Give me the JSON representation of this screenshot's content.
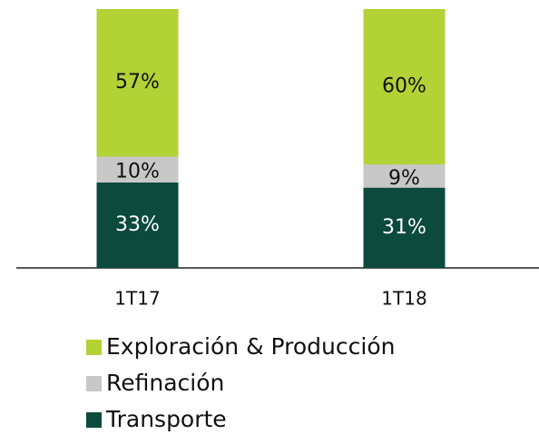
{
  "chart_data": {
    "type": "stacked_bar",
    "categories": [
      "1T17",
      "1T18"
    ],
    "series": [
      {
        "name": "Transporte",
        "color": "#0b4a3d",
        "values": [
          33,
          31
        ],
        "value_labels": [
          "33%",
          "31%"
        ]
      },
      {
        "name": "Refinación",
        "color": "#c8c8c8",
        "values": [
          10,
          9
        ],
        "value_labels": [
          "10%",
          "9%"
        ]
      },
      {
        "name": "Exploración & Producción",
        "color": "#b2d235",
        "values": [
          57,
          60
        ],
        "value_labels": [
          "57%",
          "60%"
        ]
      }
    ],
    "ylim": [
      0,
      100
    ]
  }
}
